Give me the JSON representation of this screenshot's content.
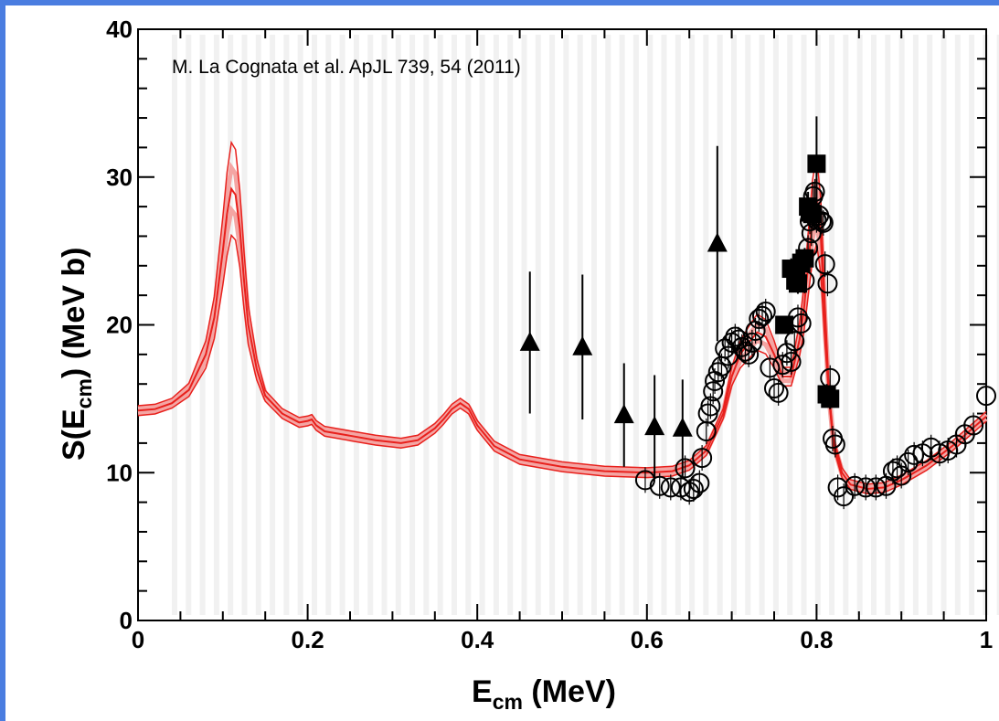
{
  "chart_data": {
    "type": "scatter",
    "annotation": "M. La Cognata et al. ApJL 739, 54 (2011)",
    "xlabel": {
      "main": "E",
      "sub": "cm",
      "rest": " (MeV)"
    },
    "ylabel": {
      "main": "S(E",
      "sub": "cm",
      "rest": ") (MeV b)"
    },
    "xlim": [
      0,
      1
    ],
    "ylim": [
      0,
      40
    ],
    "x_ticks": [
      "0",
      "0.2",
      "0.4",
      "0.6",
      "0.8",
      "1"
    ],
    "y_ticks": [
      "0",
      "10",
      "20",
      "30",
      "40"
    ],
    "grid": false,
    "colors": {
      "curve": "#e8201c",
      "curve_band": "#f4a5a3",
      "markers": "#000000",
      "frame_border": "#4a7de0"
    },
    "series": [
      {
        "marker": "curve",
        "x": [
          0.0,
          0.02,
          0.04,
          0.06,
          0.08,
          0.09,
          0.1,
          0.105,
          0.11,
          0.115,
          0.12,
          0.125,
          0.13,
          0.14,
          0.15,
          0.17,
          0.19,
          0.2,
          0.205,
          0.21,
          0.22,
          0.25,
          0.28,
          0.31,
          0.33,
          0.35,
          0.36,
          0.37,
          0.38,
          0.39,
          0.4,
          0.42,
          0.45,
          0.5,
          0.55,
          0.6,
          0.63,
          0.65,
          0.67,
          0.69,
          0.7,
          0.71,
          0.72,
          0.73,
          0.74,
          0.75,
          0.76,
          0.77,
          0.78,
          0.785,
          0.79,
          0.795,
          0.8,
          0.805,
          0.81,
          0.815,
          0.82,
          0.83,
          0.84,
          0.86,
          0.88,
          0.9,
          0.93,
          0.96,
          1.0
        ],
        "y": [
          14.2,
          14.3,
          14.7,
          15.6,
          18.0,
          20.5,
          25.0,
          27.5,
          29.2,
          28.8,
          26.5,
          23.0,
          20.0,
          17.0,
          15.2,
          14.0,
          13.4,
          13.5,
          13.6,
          13.2,
          12.8,
          12.5,
          12.2,
          12.0,
          12.2,
          13.0,
          13.6,
          14.3,
          14.7,
          14.3,
          13.2,
          11.8,
          10.9,
          10.4,
          10.1,
          10.0,
          10.1,
          10.5,
          11.5,
          14.0,
          16.5,
          18.0,
          18.8,
          19.5,
          19.2,
          18.0,
          16.5,
          16.5,
          19.0,
          21.0,
          24.0,
          27.0,
          28.5,
          26.0,
          20.0,
          15.0,
          12.0,
          10.0,
          9.2,
          8.9,
          9.0,
          9.5,
          10.5,
          11.8,
          13.8
        ]
      },
      {
        "marker": "open-circle",
        "x": [
          0.598,
          0.615,
          0.628,
          0.64,
          0.645,
          0.65,
          0.655,
          0.662,
          0.665,
          0.67,
          0.672,
          0.675,
          0.678,
          0.68,
          0.684,
          0.688,
          0.692,
          0.696,
          0.7,
          0.704,
          0.708,
          0.712,
          0.716,
          0.72,
          0.724,
          0.728,
          0.732,
          0.736,
          0.74,
          0.745,
          0.75,
          0.755,
          0.76,
          0.765,
          0.77,
          0.774,
          0.778,
          0.782,
          0.786,
          0.79,
          0.792,
          0.794,
          0.796,
          0.798,
          0.8,
          0.803,
          0.806,
          0.808,
          0.81,
          0.813,
          0.816,
          0.819,
          0.822,
          0.825,
          0.832,
          0.845,
          0.858,
          0.87,
          0.882,
          0.89,
          0.895,
          0.9,
          0.908,
          0.915,
          0.925,
          0.935,
          0.945,
          0.955,
          0.965,
          0.975,
          0.985,
          1.0
        ],
        "y": [
          9.5,
          9.1,
          9.0,
          9.0,
          10.3,
          8.7,
          8.9,
          9.3,
          11.0,
          12.8,
          14.0,
          14.5,
          15.5,
          16.2,
          16.8,
          17.2,
          18.4,
          17.9,
          18.8,
          19.2,
          19.0,
          18.5,
          18.2,
          18.0,
          18.8,
          19.6,
          20.4,
          20.6,
          20.9,
          17.1,
          15.7,
          15.4,
          17.3,
          18.1,
          17.5,
          18.9,
          20.5,
          20.1,
          23.0,
          25.2,
          27.0,
          26.2,
          28.7,
          29.0,
          27.1,
          27.4,
          27.0,
          26.9,
          24.1,
          22.8,
          16.4,
          12.3,
          11.9,
          9.0,
          8.4,
          9.1,
          9.0,
          9.0,
          9.1,
          10.1,
          10.3,
          9.8,
          10.7,
          11.2,
          11.3,
          11.7,
          11.3,
          11.5,
          11.9,
          12.6,
          13.2,
          15.2
        ]
      },
      {
        "marker": "filled-square",
        "x": [
          0.762,
          0.77,
          0.775,
          0.778,
          0.782,
          0.786,
          0.79,
          0.792,
          0.795,
          0.8,
          0.812,
          0.816
        ],
        "y": [
          20.0,
          23.8,
          23.0,
          22.8,
          24.2,
          24.5,
          28.0,
          27.6,
          27.5,
          30.9,
          15.3,
          15.0
        ],
        "yerr": [
          0.6,
          0.7,
          0.7,
          0.7,
          0.7,
          0.7,
          1.0,
          0.9,
          0.9,
          3.2,
          0.7,
          0.7
        ]
      },
      {
        "marker": "filled-triangle",
        "x": [
          0.462,
          0.524,
          0.573,
          0.609,
          0.642,
          0.683
        ],
        "y": [
          18.8,
          18.5,
          13.9,
          13.1,
          13.0,
          25.5
        ],
        "yerr": [
          4.8,
          4.9,
          3.5,
          3.5,
          3.3,
          6.6
        ]
      }
    ]
  }
}
